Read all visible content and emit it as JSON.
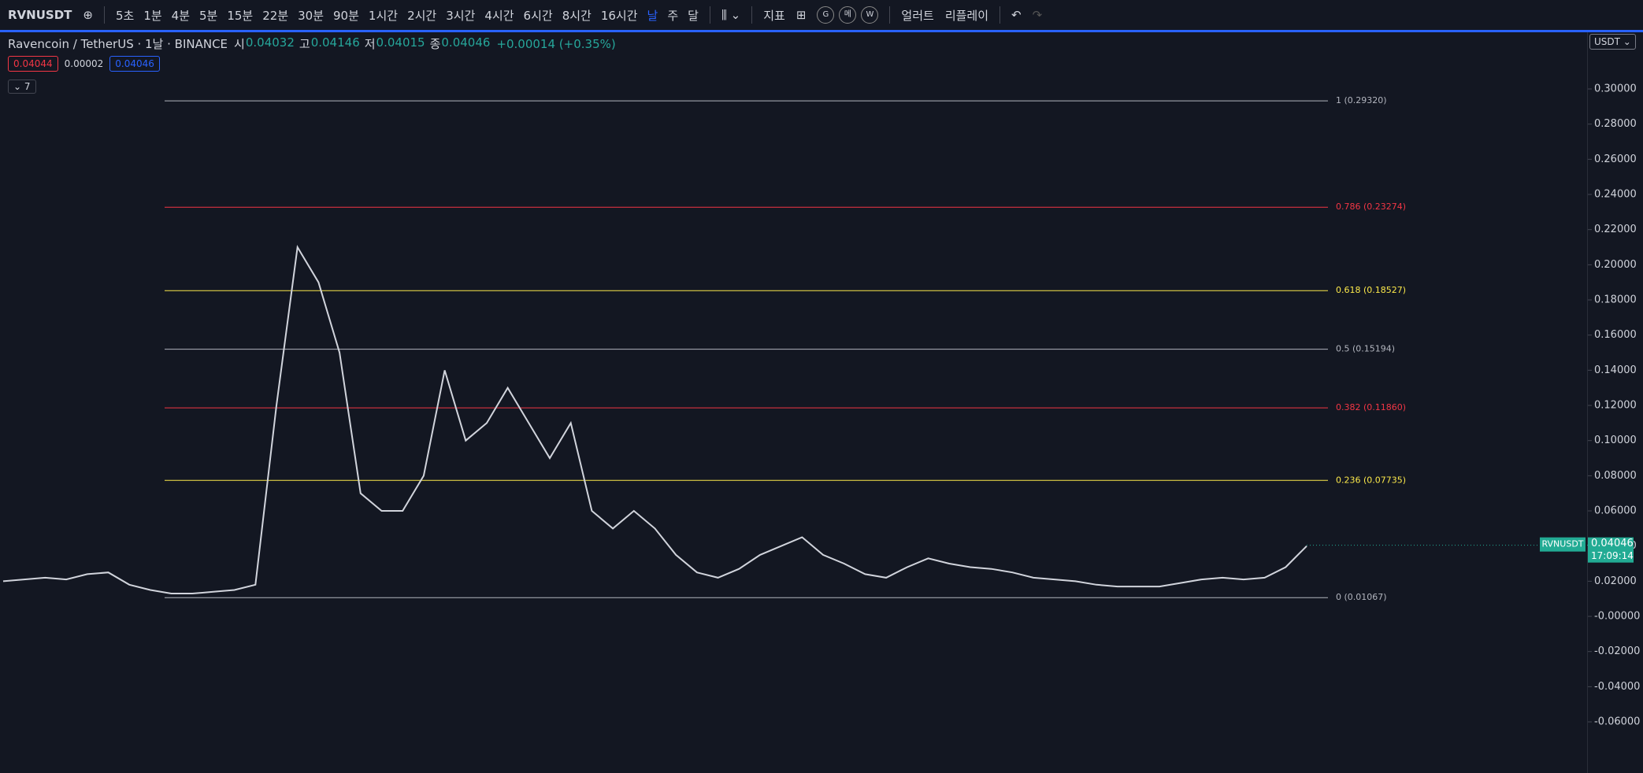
{
  "toolbar": {
    "symbol": "RVNUSDT",
    "intervals": [
      "5초",
      "1분",
      "4분",
      "5분",
      "15분",
      "22분",
      "30분",
      "90분",
      "1시간",
      "2시간",
      "3시간",
      "4시간",
      "6시간",
      "8시간",
      "16시간",
      "날",
      "주",
      "달"
    ],
    "active_interval": 15,
    "indicators": "지표",
    "layouts": [
      "G",
      "메",
      "W"
    ],
    "alert": "얼러트",
    "replay": "리플레이"
  },
  "header": {
    "title": "Ravencoin / TetherUS · 1날 · BINANCE",
    "ohlc": [
      {
        "label": "시",
        "value": "0.04032"
      },
      {
        "label": "고",
        "value": "0.04146"
      },
      {
        "label": "저",
        "value": "0.04015"
      },
      {
        "label": "종",
        "value": "0.04046"
      }
    ],
    "change": "+0.00014 (+0.35%)",
    "sell": "0.04044",
    "spread": "0.00002",
    "buy": "0.04046",
    "indicator_count": "7"
  },
  "chart_data": {
    "type": "line",
    "currency": "USDT",
    "ylim": [
      -0.0761,
      0.3197
    ],
    "yticks": [
      {
        "value": 0.3,
        "label": "0.30000"
      },
      {
        "value": 0.28,
        "label": "0.28000"
      },
      {
        "value": 0.26,
        "label": "0.26000"
      },
      {
        "value": 0.24,
        "label": "0.24000"
      },
      {
        "value": 0.22,
        "label": "0.22000"
      },
      {
        "value": 0.2,
        "label": "0.20000"
      },
      {
        "value": 0.18,
        "label": "0.18000"
      },
      {
        "value": 0.16,
        "label": "0.16000"
      },
      {
        "value": 0.14,
        "label": "0.14000"
      },
      {
        "value": 0.12,
        "label": "0.12000"
      },
      {
        "value": 0.1,
        "label": "0.10000"
      },
      {
        "value": 0.08,
        "label": "0.08000"
      },
      {
        "value": 0.06,
        "label": "0.06000"
      },
      {
        "value": 0.04,
        "label": "0.04000"
      },
      {
        "value": 0.02,
        "label": "0.02000"
      },
      {
        "value": 0,
        "label": "-0.00000"
      },
      {
        "value": -0.02,
        "label": "-0.02000"
      },
      {
        "value": -0.04,
        "label": "-0.04000"
      },
      {
        "value": -0.06,
        "label": "-0.06000"
      }
    ],
    "fib_levels": [
      {
        "label": "1 (0.29320)",
        "value": 0.2932,
        "color": "#b2b5be"
      },
      {
        "label": "0.786 (0.23274)",
        "value": 0.23274,
        "color": "#f23645"
      },
      {
        "label": "0.618 (0.18527)",
        "value": 0.18527,
        "color": "#fbe84a"
      },
      {
        "label": "0.5 (0.15194)",
        "value": 0.15194,
        "color": "#b2b5be"
      },
      {
        "label": "0.382 (0.11860)",
        "value": 0.1186,
        "color": "#f23645"
      },
      {
        "label": "0.236 (0.07735)",
        "value": 0.07735,
        "color": "#fbe84a"
      },
      {
        "label": "0 (0.01067)",
        "value": 0.01067,
        "color": "#b2b5be"
      }
    ],
    "color": "#d1d4dc",
    "values": [
      0.02,
      0.021,
      0.022,
      0.021,
      0.024,
      0.025,
      0.018,
      0.015,
      0.013,
      0.013,
      0.014,
      0.015,
      0.018,
      0.12,
      0.21,
      0.19,
      0.15,
      0.07,
      0.06,
      0.06,
      0.08,
      0.14,
      0.1,
      0.11,
      0.13,
      0.11,
      0.09,
      0.11,
      0.06,
      0.05,
      0.06,
      0.05,
      0.035,
      0.025,
      0.022,
      0.027,
      0.035,
      0.04,
      0.045,
      0.035,
      0.03,
      0.024,
      0.022,
      0.028,
      0.033,
      0.03,
      0.028,
      0.027,
      0.025,
      0.022,
      0.021,
      0.02,
      0.018,
      0.017,
      0.017,
      0.017,
      0.019,
      0.021,
      0.022,
      0.021,
      0.022,
      0.028,
      0.04
    ],
    "last_price": {
      "symbol": "RVNUSDT",
      "value": 0.04046,
      "label": "0.04046",
      "countdown": "17:09:14",
      "color": "#22ab94"
    }
  }
}
